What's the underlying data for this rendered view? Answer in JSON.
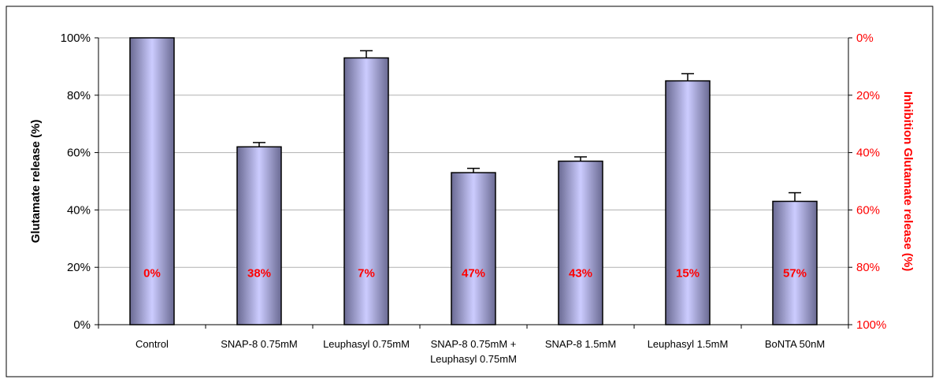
{
  "chart_data": {
    "type": "bar",
    "categories": [
      "Control",
      "SNAP-8 0.75mM",
      "Leuphasyl 0.75mM",
      "SNAP-8 0.75mM + Leuphasyl 0.75mM",
      "SNAP-8 1.5mM",
      "Leuphasyl 1.5mM",
      "BoNTA 50nM"
    ],
    "category_lines": [
      [
        "Control"
      ],
      [
        "SNAP-8 0.75mM"
      ],
      [
        "Leuphasyl 0.75mM"
      ],
      [
        "SNAP-8 0.75mM +",
        "Leuphasyl 0.75mM"
      ],
      [
        "SNAP-8 1.5mM"
      ],
      [
        "Leuphasyl 1.5mM"
      ],
      [
        "BoNTA 50nM"
      ]
    ],
    "values": [
      100,
      62,
      93,
      53,
      57,
      85,
      43
    ],
    "error": [
      0,
      1.5,
      2.5,
      1.5,
      1.5,
      2.5,
      3
    ],
    "data_labels": [
      "0%",
      "38%",
      "7%",
      "47%",
      "43%",
      "15%",
      "57%"
    ],
    "ylabel": "Glutamate release (%)",
    "y2label": "Inhibition Glutamate release (%)",
    "ylim": [
      0,
      100
    ],
    "yticks": [
      "0%",
      "20%",
      "40%",
      "60%",
      "80%",
      "100%"
    ],
    "y2ticks": [
      "100%",
      "80%",
      "60%",
      "40%",
      "20%",
      "0%"
    ],
    "grid": true,
    "colors": {
      "bar_edge": "#000000",
      "bar_light": "#ccccff",
      "bar_dark": "#6a6a92",
      "grid": "#b0b0b0",
      "secondary_axis": "#ff0000",
      "data_label": "#ff0000"
    }
  }
}
